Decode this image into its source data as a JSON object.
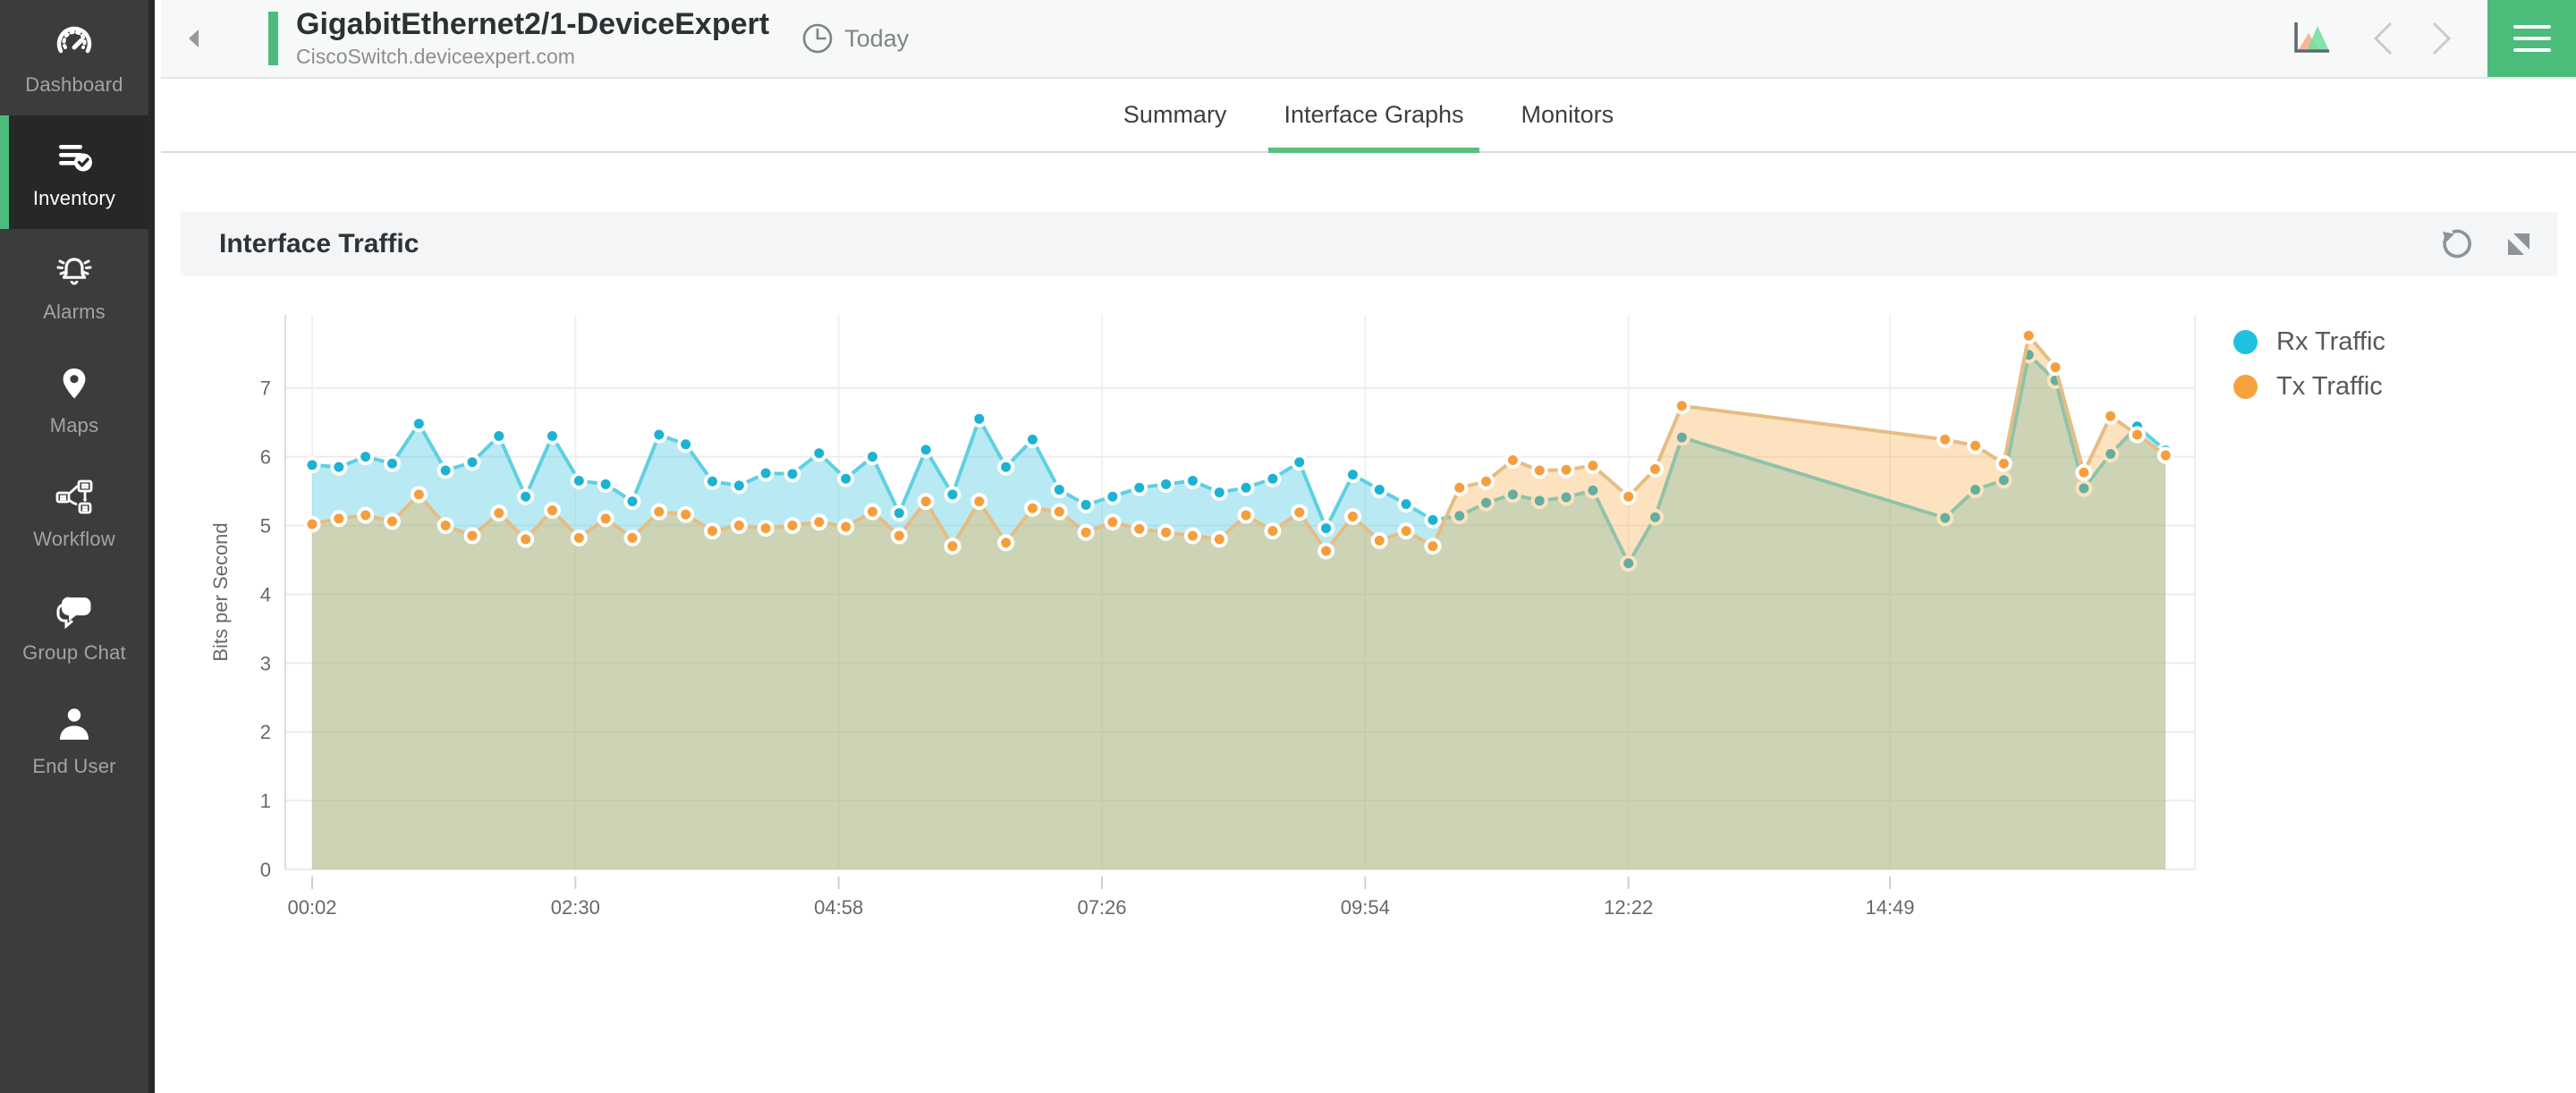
{
  "sidebar": {
    "items": [
      {
        "label": "Dashboard",
        "icon": "gauge-icon",
        "active": false
      },
      {
        "label": "Inventory",
        "icon": "inventory-list-check-icon",
        "active": true
      },
      {
        "label": "Alarms",
        "icon": "alarm-bell-icon",
        "active": false
      },
      {
        "label": "Maps",
        "icon": "map-pin-icon",
        "active": false
      },
      {
        "label": "Workflow",
        "icon": "workflow-icon",
        "active": false
      },
      {
        "label": "Group Chat",
        "icon": "chat-bubbles-icon",
        "active": false
      },
      {
        "label": "End User",
        "icon": "person-icon",
        "active": false
      }
    ],
    "accent_color": "#4cbc7c"
  },
  "header": {
    "title": "GigabitEthernet2/1-DeviceExpert",
    "subtitle": "CiscoSwitch.deviceexpert.com",
    "time_range_label": "Today",
    "icons": [
      "back-arrow-icon",
      "clock-icon",
      "area-chart-icon",
      "chevron-left-icon",
      "chevron-right-icon",
      "menu-icon"
    ],
    "accent_color": "#4cbc7c",
    "menu_button_color": "#4bbc79"
  },
  "tabs": [
    {
      "label": "Summary",
      "active": false
    },
    {
      "label": "Interface Graphs",
      "active": true
    },
    {
      "label": "Monitors",
      "active": false
    }
  ],
  "panel": {
    "title": "Interface Traffic",
    "icons": [
      "refresh-icon",
      "expand-icon"
    ]
  },
  "chart_data": {
    "type": "area",
    "title": "Interface Traffic",
    "xlabel": "",
    "ylabel": "Bits per Second",
    "ylim": [
      0,
      8.06
    ],
    "yticks": [
      0,
      1,
      2,
      3,
      4,
      5,
      6,
      7
    ],
    "grid": true,
    "legend_position": "right-top",
    "x_unit": "minutes_since_midnight",
    "xticks": [
      {
        "t": 2,
        "label": "00:02"
      },
      {
        "t": 150,
        "label": "02:30"
      },
      {
        "t": 298,
        "label": "04:58"
      },
      {
        "t": 446,
        "label": "07:26"
      },
      {
        "t": 594,
        "label": "09:54"
      },
      {
        "t": 742,
        "label": "12:22"
      },
      {
        "t": 889,
        "label": "14:49"
      }
    ],
    "series": [
      {
        "name": "Rx Traffic",
        "color": "#1fc1de",
        "line_color": "#5fd0e2",
        "marker_color": "#1cb2d3",
        "fill": "rgba(100,209,229,0.45)",
        "points": [
          [
            2,
            5.88
          ],
          [
            17,
            5.85
          ],
          [
            32,
            6.0
          ],
          [
            47,
            5.9
          ],
          [
            62,
            6.48
          ],
          [
            77,
            5.8
          ],
          [
            92,
            5.92
          ],
          [
            107,
            6.3
          ],
          [
            122,
            5.42
          ],
          [
            137,
            6.3
          ],
          [
            152,
            5.65
          ],
          [
            167,
            5.6
          ],
          [
            182,
            5.35
          ],
          [
            197,
            6.32
          ],
          [
            212,
            6.18
          ],
          [
            227,
            5.64
          ],
          [
            242,
            5.58
          ],
          [
            257,
            5.76
          ],
          [
            272,
            5.75
          ],
          [
            287,
            6.05
          ],
          [
            302,
            5.68
          ],
          [
            317,
            6.0
          ],
          [
            332,
            5.18
          ],
          [
            347,
            6.1
          ],
          [
            362,
            5.45
          ],
          [
            377,
            6.55
          ],
          [
            392,
            5.85
          ],
          [
            407,
            6.25
          ],
          [
            422,
            5.52
          ],
          [
            437,
            5.3
          ],
          [
            452,
            5.42
          ],
          [
            467,
            5.55
          ],
          [
            482,
            5.6
          ],
          [
            497,
            5.65
          ],
          [
            512,
            5.48
          ],
          [
            527,
            5.55
          ],
          [
            542,
            5.68
          ],
          [
            557,
            5.92
          ],
          [
            572,
            4.96
          ],
          [
            587,
            5.74
          ],
          [
            602,
            5.52
          ],
          [
            617,
            5.31
          ],
          [
            632,
            5.08
          ],
          [
            647,
            5.14
          ],
          [
            662,
            5.33
          ],
          [
            677,
            5.45
          ],
          [
            692,
            5.36
          ],
          [
            707,
            5.41
          ],
          [
            722,
            5.51
          ],
          [
            742,
            4.45
          ],
          [
            757,
            5.12
          ],
          [
            772,
            6.28
          ],
          [
            920,
            5.11
          ],
          [
            937,
            5.52
          ],
          [
            953,
            5.66
          ],
          [
            967,
            7.48
          ],
          [
            982,
            7.11
          ],
          [
            998,
            5.54
          ],
          [
            1013,
            6.04
          ],
          [
            1028,
            6.44
          ],
          [
            1044,
            6.09
          ]
        ]
      },
      {
        "name": "Tx Traffic",
        "color": "#f7a23c",
        "line_color": "#e5bd84",
        "marker_color": "#f59e3b",
        "fill": "rgba(247,166,59,0.33)",
        "points": [
          [
            2,
            5.02
          ],
          [
            17,
            5.1
          ],
          [
            32,
            5.15
          ],
          [
            47,
            5.06
          ],
          [
            62,
            5.45
          ],
          [
            77,
            5.0
          ],
          [
            92,
            4.85
          ],
          [
            107,
            5.18
          ],
          [
            122,
            4.8
          ],
          [
            137,
            5.22
          ],
          [
            152,
            4.82
          ],
          [
            167,
            5.1
          ],
          [
            182,
            4.82
          ],
          [
            197,
            5.2
          ],
          [
            212,
            5.16
          ],
          [
            227,
            4.92
          ],
          [
            242,
            5.0
          ],
          [
            257,
            4.96
          ],
          [
            272,
            5.0
          ],
          [
            287,
            5.05
          ],
          [
            302,
            4.98
          ],
          [
            317,
            5.2
          ],
          [
            332,
            4.85
          ],
          [
            347,
            5.35
          ],
          [
            362,
            4.7
          ],
          [
            377,
            5.35
          ],
          [
            392,
            4.75
          ],
          [
            407,
            5.25
          ],
          [
            422,
            5.2
          ],
          [
            437,
            4.9
          ],
          [
            452,
            5.05
          ],
          [
            467,
            4.95
          ],
          [
            482,
            4.9
          ],
          [
            497,
            4.85
          ],
          [
            512,
            4.8
          ],
          [
            527,
            5.15
          ],
          [
            542,
            4.92
          ],
          [
            557,
            5.19
          ],
          [
            572,
            4.63
          ],
          [
            587,
            5.13
          ],
          [
            602,
            4.78
          ],
          [
            617,
            4.92
          ],
          [
            632,
            4.7
          ],
          [
            647,
            5.55
          ],
          [
            662,
            5.64
          ],
          [
            677,
            5.95
          ],
          [
            692,
            5.8
          ],
          [
            707,
            5.81
          ],
          [
            722,
            5.87
          ],
          [
            742,
            5.42
          ],
          [
            757,
            5.82
          ],
          [
            772,
            6.74
          ],
          [
            920,
            6.25
          ],
          [
            937,
            6.16
          ],
          [
            953,
            5.9
          ],
          [
            967,
            7.76
          ],
          [
            982,
            7.3
          ],
          [
            998,
            5.77
          ],
          [
            1013,
            6.59
          ],
          [
            1028,
            6.32
          ],
          [
            1044,
            6.02
          ]
        ]
      }
    ]
  }
}
